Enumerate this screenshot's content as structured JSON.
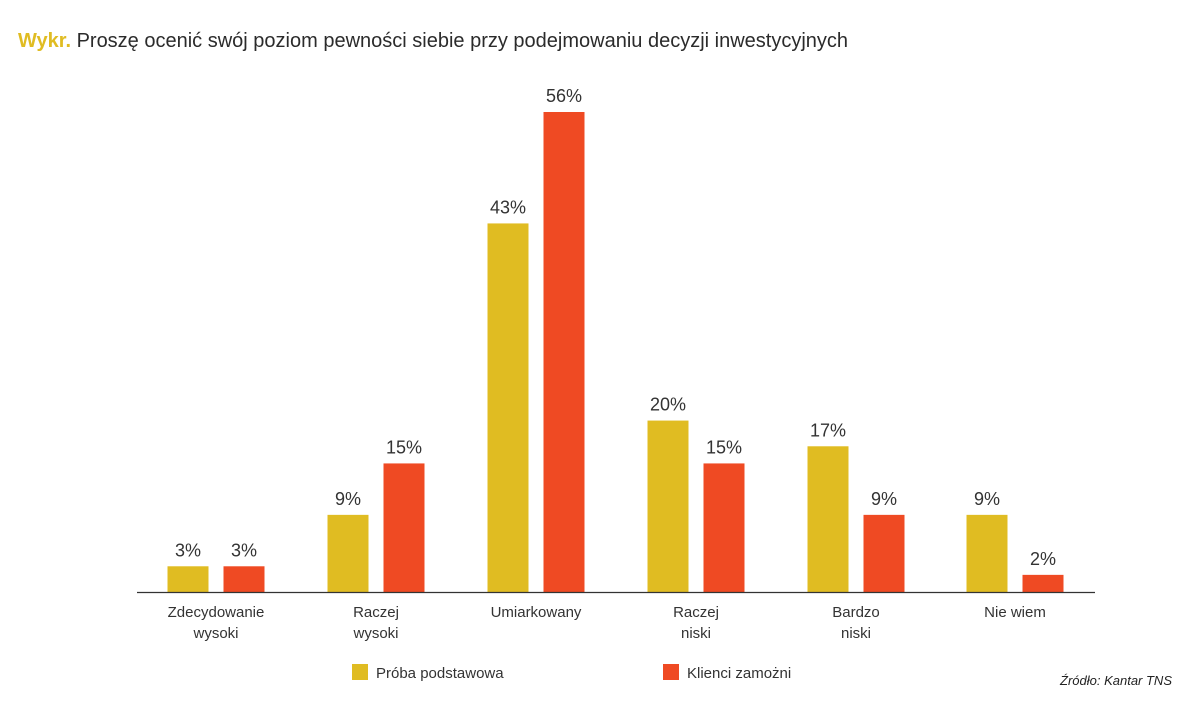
{
  "title": {
    "prefix": "Wykr.",
    "text": "Proszę ocenić swój poziom pewności siebie przy podejmowaniu decyzji inwestycyjnych"
  },
  "source": "Źródło: Kantar TNS",
  "colors": {
    "series1": "#e0bc22",
    "series2": "#ef4a23",
    "axis": "#333333",
    "text": "#333333"
  },
  "chart_data": {
    "type": "bar",
    "categories": [
      [
        "Zdecydowanie",
        "wysoki"
      ],
      [
        "Raczej",
        "wysoki"
      ],
      [
        "Umiarkowany"
      ],
      [
        "Raczej",
        "niski"
      ],
      [
        "Bardzo",
        "niski"
      ],
      [
        "Nie wiem"
      ]
    ],
    "series": [
      {
        "name": "Próba podstawowa",
        "values": [
          3,
          9,
          43,
          20,
          17,
          9
        ],
        "labels": [
          "3%",
          "9%",
          "43%",
          "20%",
          "17%",
          "9%"
        ]
      },
      {
        "name": "Klienci zamożni",
        "values": [
          3,
          15,
          56,
          15,
          9,
          2
        ],
        "labels": [
          "3%",
          "15%",
          "56%",
          "15%",
          "9%",
          "2%"
        ]
      }
    ],
    "ylim": [
      0,
      56
    ],
    "grid": false,
    "legend_position": "bottom"
  }
}
